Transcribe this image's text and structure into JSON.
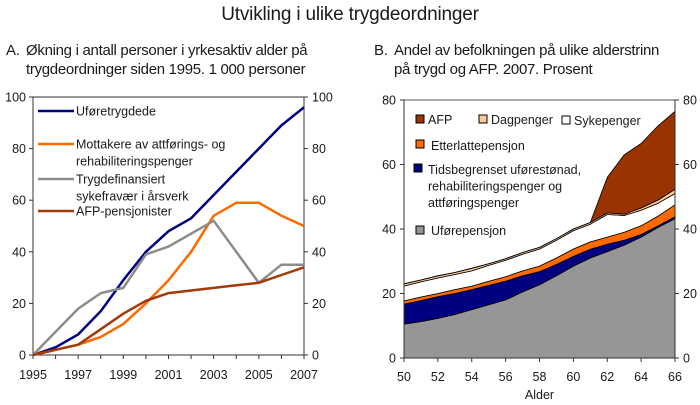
{
  "title": "Utvikling i ulike trygdeordninger",
  "chart_data": [
    {
      "id": "A",
      "type": "line",
      "panel_letter": "A.",
      "title_line1": "Økning i antall personer i yrkesaktiv alder på",
      "title_line2": "trygdeordninger siden 1995. 1 000 personer",
      "xlabel": "",
      "ylabel": "",
      "x": [
        1995,
        1996,
        1997,
        1998,
        1999,
        2000,
        2001,
        2002,
        2003,
        2004,
        2005,
        2006,
        2007
      ],
      "xticks": [
        "1995",
        "1997",
        "1999",
        "2001",
        "2003",
        "2005",
        "2007"
      ],
      "xlim": [
        1995,
        2007
      ],
      "ylim": [
        0,
        100
      ],
      "yticks": [
        "0",
        "20",
        "40",
        "60",
        "80",
        "100"
      ],
      "grid": false,
      "legend_position": "top-left",
      "series": [
        {
          "name": "Uføretrygdede",
          "color": "#000080",
          "values": [
            0,
            3,
            8,
            17,
            29,
            40,
            48,
            53,
            62,
            71,
            80,
            89,
            96
          ]
        },
        {
          "name": "Mottakere av attførings- og rehabiliteringspenger",
          "legend_line1": "Mottakere av attførings- og",
          "legend_line2": "rehabiliteringspenger",
          "color": "#FF6A00",
          "values": [
            0,
            2,
            4,
            7,
            12,
            20,
            29,
            40,
            54,
            59,
            59,
            54,
            50
          ]
        },
        {
          "name": "Trygdefinansiert sykefravær i årsverk",
          "legend_line1": "Trygdefinansiert",
          "legend_line2": "sykefravær i årsverk",
          "color": "#8C8C8C",
          "values": [
            0,
            9,
            18,
            24,
            26,
            39,
            42,
            47,
            52,
            40,
            28,
            35,
            35
          ]
        },
        {
          "name": "AFP-pensjonister",
          "color": "#A33A0B",
          "values": [
            0,
            2,
            4,
            10,
            16,
            21,
            24,
            25,
            26,
            27,
            28,
            31,
            34
          ]
        }
      ]
    },
    {
      "id": "B",
      "type": "area",
      "stacked": true,
      "panel_letter": "B.",
      "title_line1": "Andel av befolkningen på ulike alderstrinn",
      "title_line2": "på trygd og AFP. 2007. Prosent",
      "xlabel": "Alder",
      "ylabel": "",
      "x": [
        50,
        51,
        52,
        53,
        54,
        55,
        56,
        57,
        58,
        59,
        60,
        61,
        62,
        63,
        64,
        65,
        66
      ],
      "xticks": [
        "50",
        "52",
        "54",
        "56",
        "58",
        "60",
        "62",
        "64",
        "66"
      ],
      "xlim": [
        50,
        66
      ],
      "ylim": [
        0,
        80
      ],
      "yticks": [
        "0",
        "20",
        "40",
        "60",
        "80"
      ],
      "grid": false,
      "legend_position": "top-left",
      "series": [
        {
          "name": "Uførepensjon",
          "color": "#969696",
          "values": [
            10.5,
            11.3,
            12.3,
            13.5,
            15.0,
            16.5,
            18.0,
            20.5,
            22.7,
            25.5,
            28.5,
            31.0,
            33.0,
            35.0,
            37.5,
            40.5,
            43.2
          ]
        },
        {
          "name": "Tidsbegrenset uførestønad, rehabiliteringspenger og attføringspenger",
          "legend_line1": "Tidsbegrenset uførestønad,",
          "legend_line2": "rehabiliteringspenger og",
          "legend_line3": "attføringspenger",
          "color": "#000080",
          "values": [
            6.2,
            6.5,
            6.7,
            6.5,
            6.2,
            6.0,
            5.8,
            5.0,
            4.1,
            3.5,
            3.0,
            2.7,
            2.3,
            1.5,
            0.8,
            0.5,
            0.6
          ]
        },
        {
          "name": "Etterlattepensjon",
          "color": "#FF6A00",
          "values": [
            1.0,
            1.1,
            1.0,
            1.2,
            1.1,
            1.3,
            1.4,
            1.5,
            1.7,
            2.0,
            2.3,
            2.3,
            2.2,
            2.5,
            2.7,
            3.0,
            3.7
          ]
        },
        {
          "name": "Sykepenger",
          "color": "#FFFFFF",
          "values": [
            4.6,
            4.7,
            4.8,
            4.7,
            4.7,
            4.9,
            5.1,
            5.2,
            5.3,
            5.5,
            5.7,
            5.5,
            7.0,
            5.2,
            4.8,
            4.0,
            3.5
          ]
        },
        {
          "name": "Dagpenger",
          "color": "#FFC896",
          "values": [
            0.7,
            0.6,
            0.7,
            0.6,
            0.8,
            0.5,
            0.5,
            0.5,
            0.5,
            0.5,
            0.5,
            0.5,
            0.5,
            0.4,
            0.7,
            1.0,
            1.3
          ]
        },
        {
          "name": "AFP",
          "color": "#993300",
          "values": [
            0,
            0,
            0,
            0,
            0,
            0,
            0,
            0,
            0,
            0,
            0,
            0,
            11.0,
            18.4,
            20.0,
            23.0,
            24.2
          ]
        }
      ],
      "legend_rows": [
        [
          "AFP",
          "Dagpenger",
          "Sykepenger"
        ],
        [
          "Etterlattepensjon"
        ],
        [
          "Tidsbegrenset uførestønad, rehabiliteringspenger og attføringspenger"
        ],
        [
          "Uførepensjon"
        ]
      ]
    }
  ]
}
